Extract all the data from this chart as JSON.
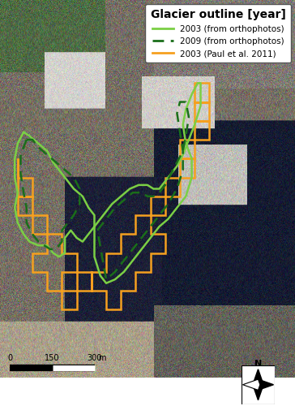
{
  "title": "Glacier outline [year]",
  "title_fontsize": 10,
  "legend_labels": [
    "2003 (from orthophotos)",
    "2009 (from orthophotos)",
    "2003 (Paul et al. 2011)"
  ],
  "legend_colors": [
    "#7bcf45",
    "#1a6e1a",
    "#f5a020"
  ],
  "scalebar_labels": [
    "0",
    "150",
    "300"
  ],
  "scalebar_unit": "m"
}
